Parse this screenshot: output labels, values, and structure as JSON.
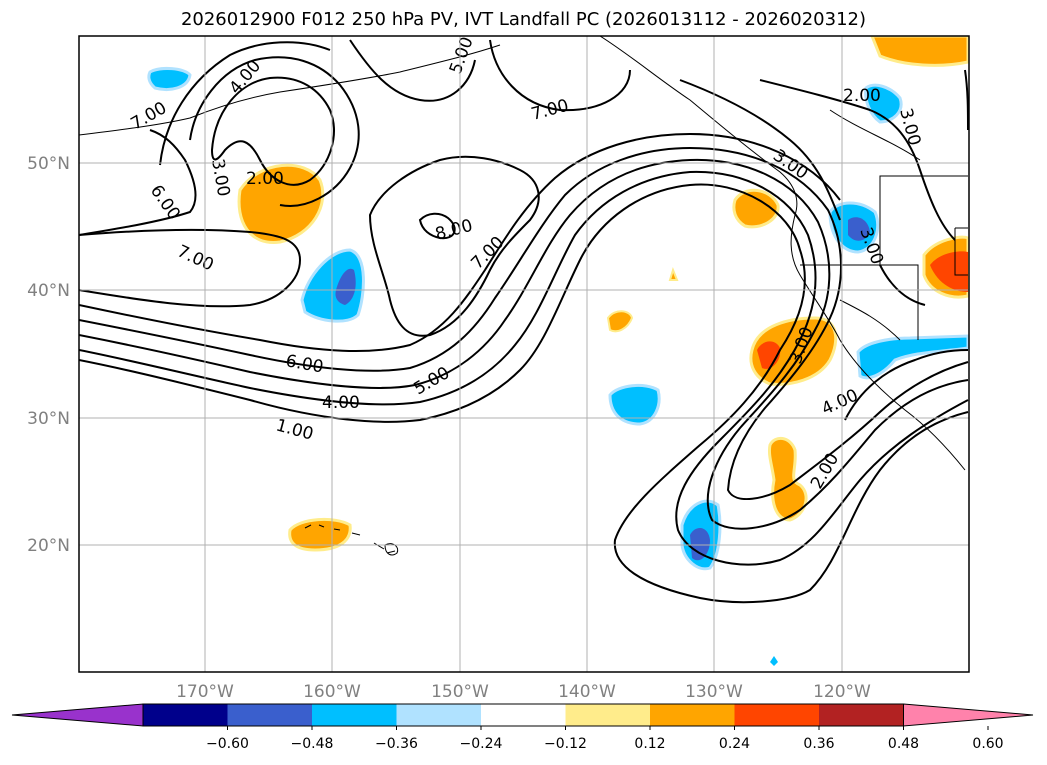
{
  "title": "2026012900 F012 250 hPa PV, IVT Landfall PC (2026013112 - 2026020312)",
  "lon_labels": [
    "170°W",
    "160°W",
    "150°W",
    "140°W",
    "130°W",
    "120°W"
  ],
  "lat_labels": [
    "50°N",
    "40°N",
    "30°N",
    "20°N"
  ],
  "contour_labels": [
    "1.00",
    "2.00",
    "3.00",
    "4.00",
    "5.00",
    "6.00",
    "7.00",
    "8.00"
  ],
  "colorbar": {
    "ticks": [
      "−0.60",
      "−0.48",
      "−0.36",
      "−0.24",
      "−0.12",
      "0.12",
      "0.24",
      "0.36",
      "0.48",
      "0.60"
    ],
    "colors": [
      "#9932cc",
      "#00008b",
      "#3a5fcd",
      "#00bfff",
      "#b0e2ff",
      "#ffffff",
      "#ffec8b",
      "#ffa500",
      "#ff4500",
      "#b22222",
      "#ff82ab"
    ]
  }
}
